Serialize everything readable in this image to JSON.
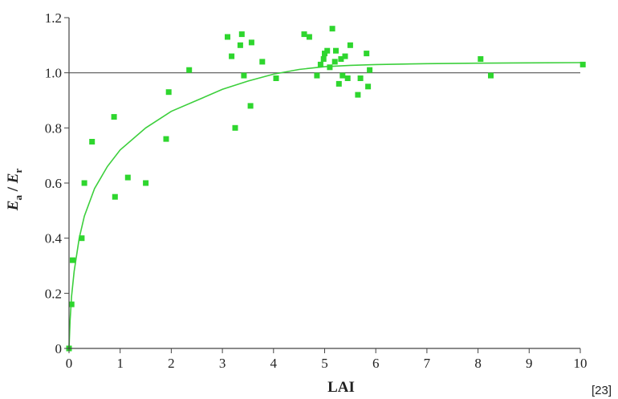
{
  "chart_data": {
    "type": "scatter",
    "xlabel": "LAI",
    "ylabel": {
      "main1": "E",
      "sub1": "a",
      "sep": " / ",
      "main2": "E",
      "sub2": "r"
    },
    "xlim": [
      0,
      10
    ],
    "ylim": [
      0,
      1.2
    ],
    "xticks": [
      0,
      1,
      2,
      3,
      4,
      5,
      6,
      7,
      8,
      9,
      10
    ],
    "yticks": [
      0,
      0.2,
      0.4,
      0.6,
      0.8,
      1.0,
      1.2
    ],
    "ytick_labels": [
      "0",
      "0.2",
      "0.4",
      "0.6",
      "0.8",
      "1.0",
      "1.2"
    ],
    "reference_line": {
      "y": 1.0
    },
    "colors": {
      "points": "#2ed62e",
      "curve": "#3ccf3c",
      "reference_line": "#555555",
      "axes": "#444444"
    },
    "points": [
      {
        "x": 0.0,
        "y": 0.0
      },
      {
        "x": 0.05,
        "y": 0.16
      },
      {
        "x": 0.07,
        "y": 0.32
      },
      {
        "x": 0.25,
        "y": 0.4
      },
      {
        "x": 0.3,
        "y": 0.6
      },
      {
        "x": 0.45,
        "y": 0.75
      },
      {
        "x": 0.88,
        "y": 0.84
      },
      {
        "x": 0.9,
        "y": 0.55
      },
      {
        "x": 1.15,
        "y": 0.62
      },
      {
        "x": 1.5,
        "y": 0.6
      },
      {
        "x": 1.9,
        "y": 0.76
      },
      {
        "x": 1.95,
        "y": 0.93
      },
      {
        "x": 2.35,
        "y": 1.01
      },
      {
        "x": 3.1,
        "y": 1.13
      },
      {
        "x": 3.18,
        "y": 1.06
      },
      {
        "x": 3.25,
        "y": 0.8
      },
      {
        "x": 3.35,
        "y": 1.1
      },
      {
        "x": 3.38,
        "y": 1.14
      },
      {
        "x": 3.42,
        "y": 0.99
      },
      {
        "x": 3.55,
        "y": 0.88
      },
      {
        "x": 3.57,
        "y": 1.11
      },
      {
        "x": 3.78,
        "y": 1.04
      },
      {
        "x": 4.05,
        "y": 0.98
      },
      {
        "x": 4.6,
        "y": 1.14
      },
      {
        "x": 4.7,
        "y": 1.13
      },
      {
        "x": 4.85,
        "y": 0.99
      },
      {
        "x": 4.92,
        "y": 1.03
      },
      {
        "x": 4.98,
        "y": 1.05
      },
      {
        "x": 5.0,
        "y": 1.07
      },
      {
        "x": 5.05,
        "y": 1.08
      },
      {
        "x": 5.1,
        "y": 1.02
      },
      {
        "x": 5.15,
        "y": 1.16
      },
      {
        "x": 5.2,
        "y": 1.04
      },
      {
        "x": 5.22,
        "y": 1.08
      },
      {
        "x": 5.28,
        "y": 0.96
      },
      {
        "x": 5.32,
        "y": 1.05
      },
      {
        "x": 5.35,
        "y": 0.99
      },
      {
        "x": 5.4,
        "y": 1.06
      },
      {
        "x": 5.45,
        "y": 0.98
      },
      {
        "x": 5.5,
        "y": 1.1
      },
      {
        "x": 5.65,
        "y": 0.92
      },
      {
        "x": 5.7,
        "y": 0.98
      },
      {
        "x": 5.82,
        "y": 1.07
      },
      {
        "x": 5.85,
        "y": 0.95
      },
      {
        "x": 5.88,
        "y": 1.01
      },
      {
        "x": 8.05,
        "y": 1.05
      },
      {
        "x": 8.25,
        "y": 0.99
      },
      {
        "x": 10.05,
        "y": 1.03
      }
    ],
    "fit_curve": [
      {
        "x": 0.0,
        "y": 0.0
      },
      {
        "x": 0.02,
        "y": 0.1
      },
      {
        "x": 0.05,
        "y": 0.19
      },
      {
        "x": 0.1,
        "y": 0.28
      },
      {
        "x": 0.2,
        "y": 0.4
      },
      {
        "x": 0.3,
        "y": 0.48
      },
      {
        "x": 0.5,
        "y": 0.58
      },
      {
        "x": 0.75,
        "y": 0.66
      },
      {
        "x": 1.0,
        "y": 0.72
      },
      {
        "x": 1.5,
        "y": 0.8
      },
      {
        "x": 2.0,
        "y": 0.86
      },
      {
        "x": 2.5,
        "y": 0.9
      },
      {
        "x": 3.0,
        "y": 0.94
      },
      {
        "x": 3.5,
        "y": 0.97
      },
      {
        "x": 4.0,
        "y": 0.995
      },
      {
        "x": 4.5,
        "y": 1.012
      },
      {
        "x": 5.0,
        "y": 1.022
      },
      {
        "x": 5.5,
        "y": 1.027
      },
      {
        "x": 6.0,
        "y": 1.03
      },
      {
        "x": 7.0,
        "y": 1.033
      },
      {
        "x": 8.0,
        "y": 1.035
      },
      {
        "x": 9.0,
        "y": 1.036
      },
      {
        "x": 10.0,
        "y": 1.037
      }
    ]
  },
  "citation": "[23]"
}
